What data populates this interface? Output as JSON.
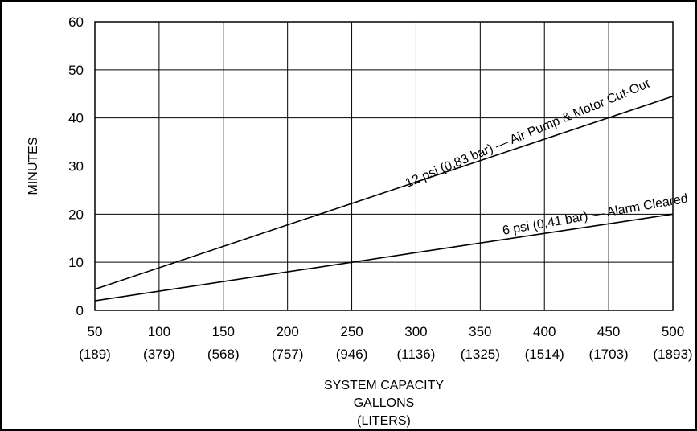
{
  "chart_data": {
    "type": "line",
    "title": "",
    "xlabel_lines": [
      "SYSTEM CAPACITY",
      "GALLONS",
      "(LITERS)"
    ],
    "ylabel": "MINUTES",
    "xlim": [
      50,
      500
    ],
    "ylim": [
      0,
      60
    ],
    "grid": true,
    "x_ticks": [
      {
        "value": 50,
        "label": "50",
        "sublabel": "(189)"
      },
      {
        "value": 100,
        "label": "100",
        "sublabel": "(379)"
      },
      {
        "value": 150,
        "label": "150",
        "sublabel": "(568)"
      },
      {
        "value": 200,
        "label": "200",
        "sublabel": "(757)"
      },
      {
        "value": 250,
        "label": "250",
        "sublabel": "(946)"
      },
      {
        "value": 300,
        "label": "300",
        "sublabel": "(1136)"
      },
      {
        "value": 350,
        "label": "350",
        "sublabel": "(1325)"
      },
      {
        "value": 400,
        "label": "400",
        "sublabel": "(1514)"
      },
      {
        "value": 450,
        "label": "450",
        "sublabel": "(1703)"
      },
      {
        "value": 500,
        "label": "500",
        "sublabel": "(1893)"
      }
    ],
    "y_ticks": [
      0,
      10,
      20,
      30,
      40,
      50,
      60
    ],
    "series": [
      {
        "name": "12 psi (0,83 bar) — Air Pump & Motor Cut-Out",
        "x": [
          50,
          500
        ],
        "y": [
          4.4,
          44.5
        ],
        "label_anchor_x": 388,
        "label_angle_deg": -22.5
      },
      {
        "name": "6 psi (0,41 bar) — Alarm Cleared",
        "x": [
          50,
          500
        ],
        "y": [
          2,
          20
        ],
        "label_anchor_x": 440,
        "label_angle_deg": -10
      }
    ]
  }
}
